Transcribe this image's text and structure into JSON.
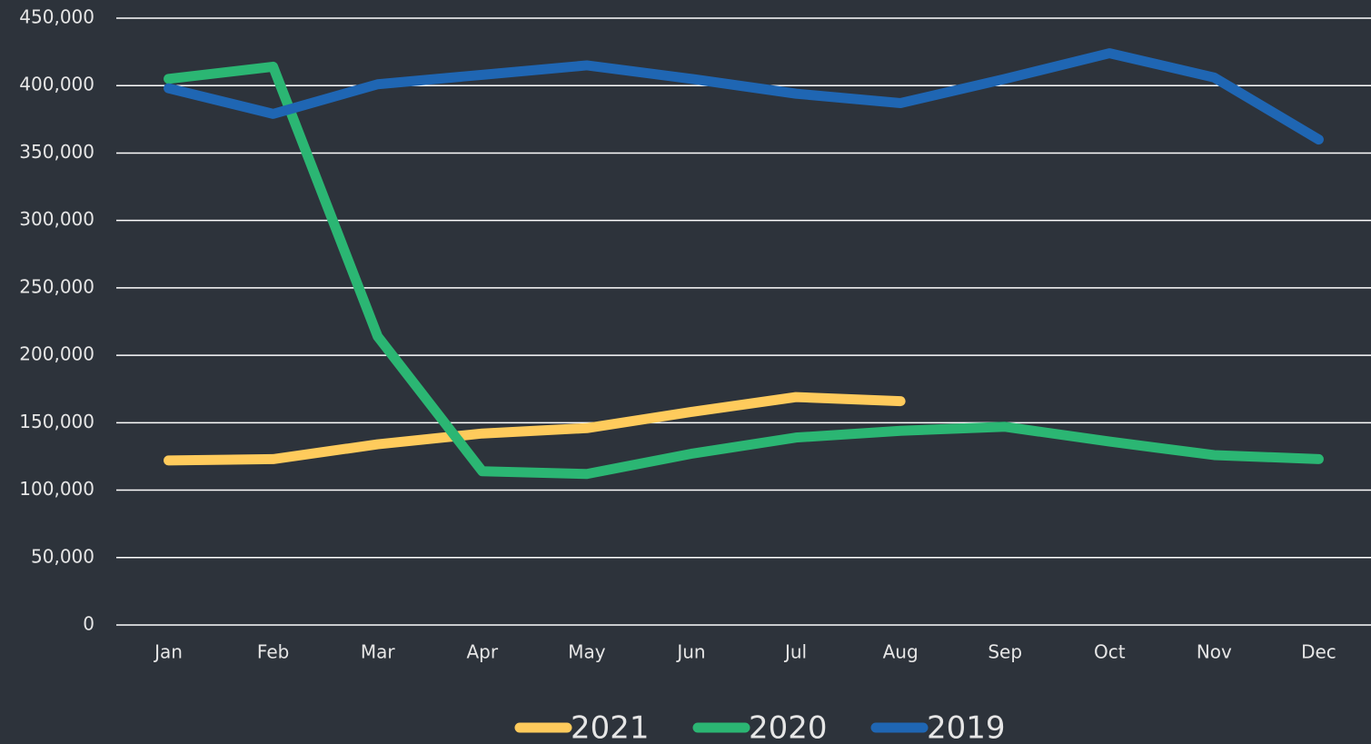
{
  "chart_data": {
    "type": "line",
    "categories": [
      "Jan",
      "Feb",
      "Mar",
      "Apr",
      "May",
      "Jun",
      "Jul",
      "Aug",
      "Sep",
      "Oct",
      "Nov",
      "Dec"
    ],
    "series": [
      {
        "name": "2021",
        "color": "#ffcb5c",
        "values": [
          122000,
          123000,
          134000,
          142000,
          146000,
          158000,
          169000,
          166000,
          null,
          null,
          null,
          null
        ]
      },
      {
        "name": "2020",
        "color": "#2bb673",
        "values": [
          405000,
          414000,
          214000,
          114000,
          112000,
          127000,
          139000,
          144000,
          147000,
          136000,
          126000,
          123000
        ]
      },
      {
        "name": "2019",
        "color": "#1f66b3",
        "values": [
          398000,
          379000,
          401000,
          408000,
          415000,
          405000,
          394000,
          387000,
          405000,
          424000,
          406000,
          360000
        ]
      }
    ],
    "ylim": [
      0,
      450000
    ],
    "yticks": [
      0,
      {
        "value": 50000,
        "label": "50,000"
      },
      {
        "value": 100000,
        "label": "100,000"
      },
      {
        "value": 150000,
        "label": "150,000"
      },
      {
        "value": 200000,
        "label": "200,000"
      },
      {
        "value": 250000,
        "label": "250,000"
      },
      {
        "value": 300000,
        "label": "300,000"
      },
      {
        "value": 350000,
        "label": "350,000"
      },
      {
        "value": 400000,
        "label": "400,000"
      },
      {
        "value": 450000,
        "label": "450,000"
      }
    ],
    "grid": true,
    "legend": "bottom"
  }
}
